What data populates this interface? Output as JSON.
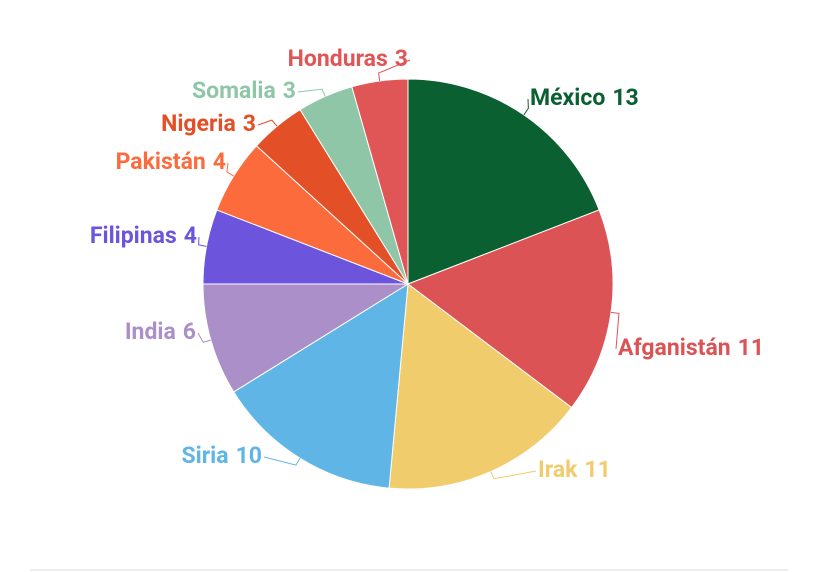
{
  "chart_data": {
    "type": "pie",
    "categories": [
      "México",
      "Afganistán",
      "Irak",
      "Siria",
      "India",
      "Filipinas",
      "Pakistán",
      "Nigeria",
      "Somalia",
      "Honduras"
    ],
    "values": [
      13,
      11,
      11,
      10,
      6,
      4,
      4,
      3,
      3,
      3
    ],
    "colors": [
      "#0b6032",
      "#dc5356",
      "#f0cc6c",
      "#5fb5e5",
      "#ab8fc9",
      "#6c55dc",
      "#fb6b3c",
      "#e34f26",
      "#90c6a8",
      "#e05556"
    ]
  }
}
